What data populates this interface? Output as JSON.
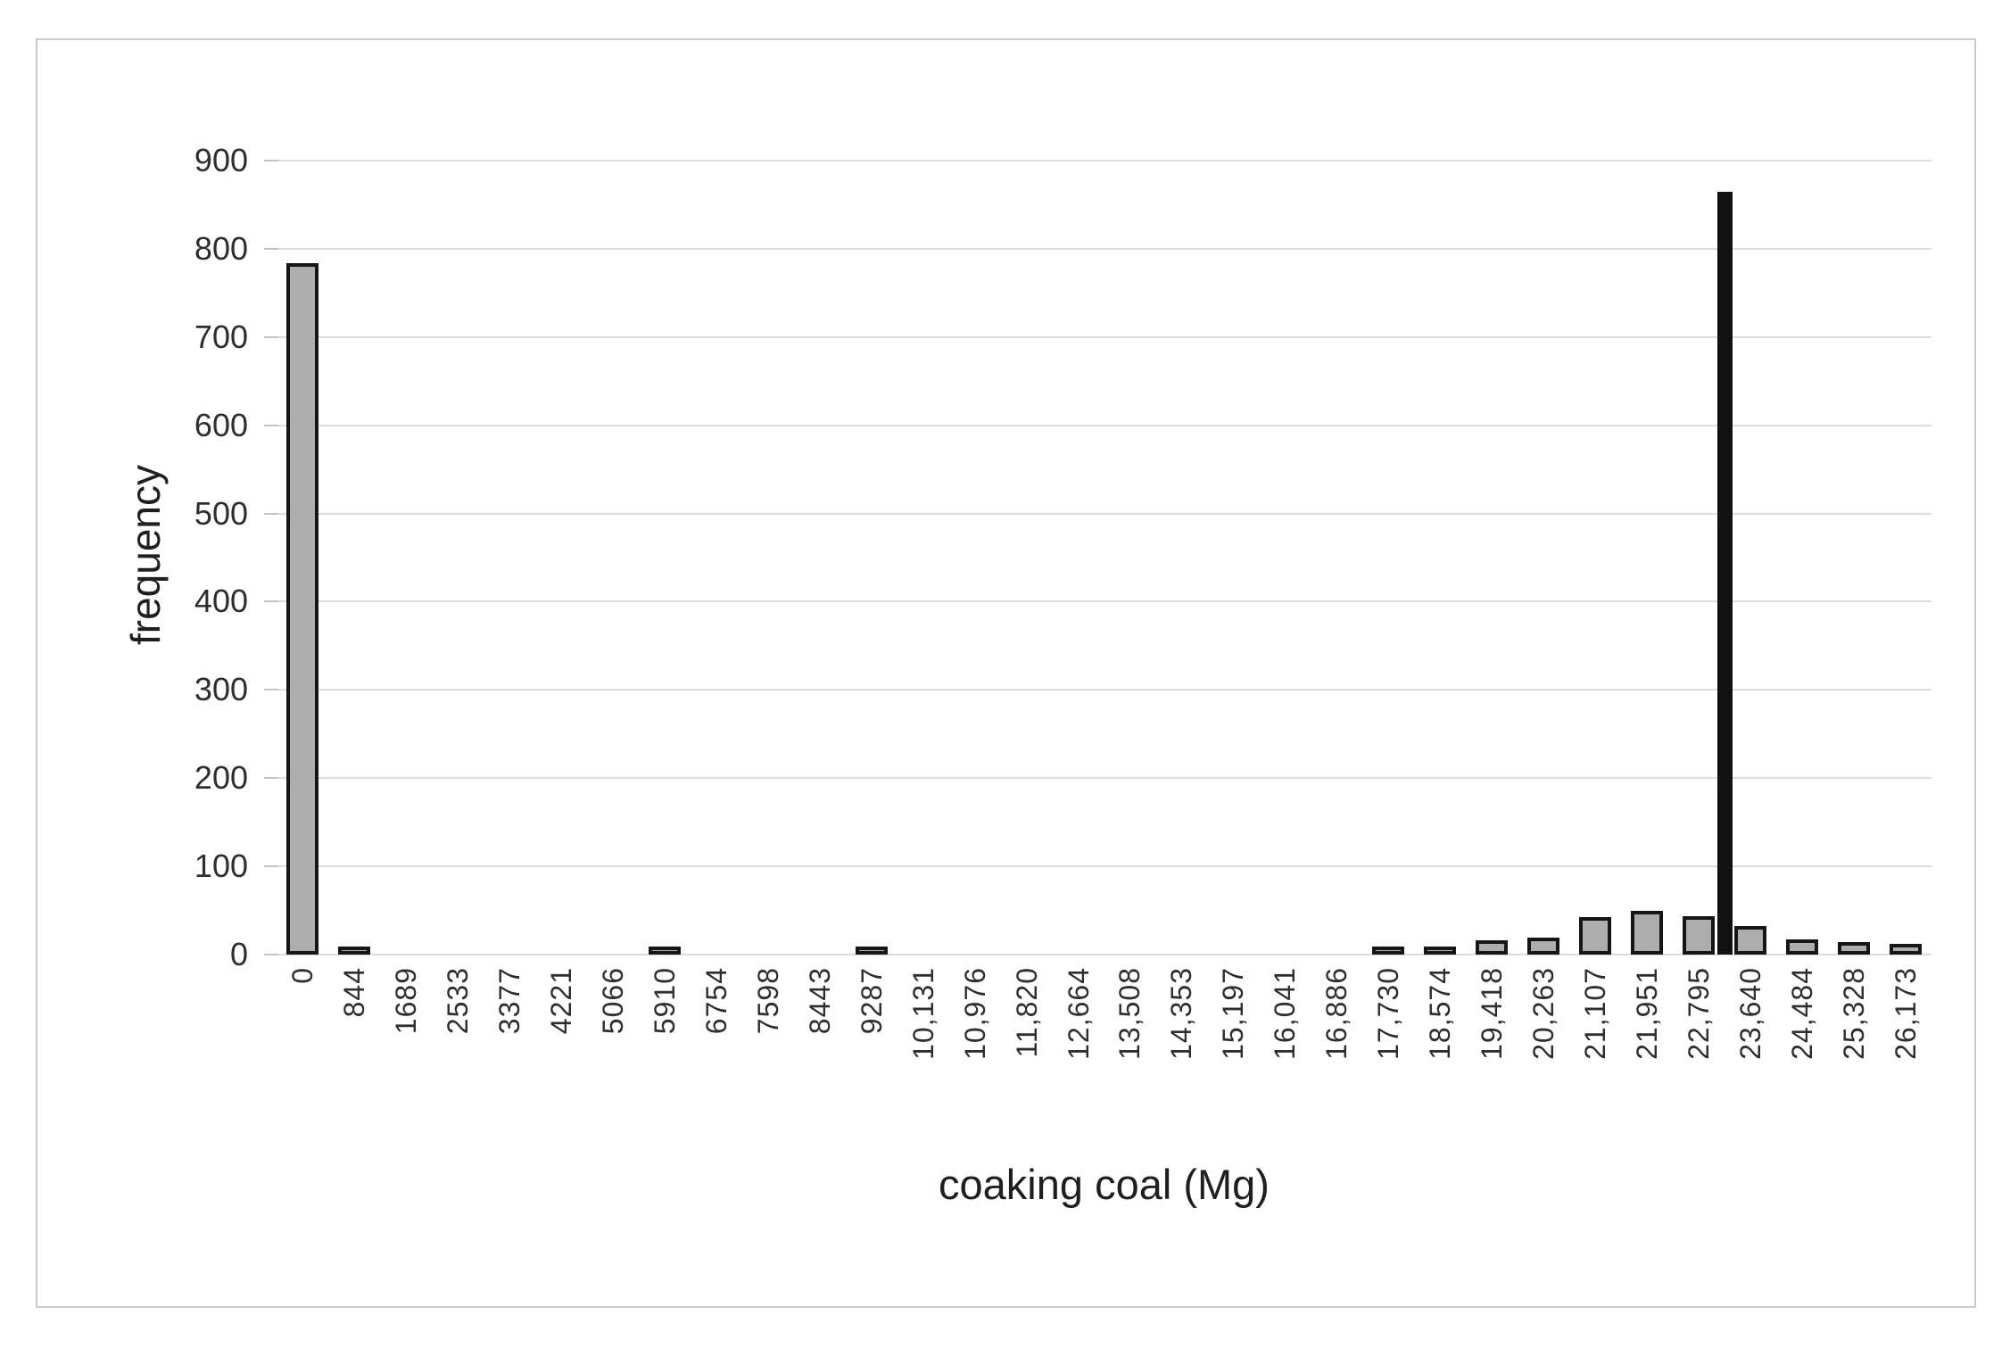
{
  "chart_data": {
    "type": "bar",
    "title": "",
    "xlabel": "coaking coal (Mg)",
    "ylabel": "frequency",
    "categories": [
      "0",
      "844",
      "1689",
      "2533",
      "3377",
      "4221",
      "5066",
      "5910",
      "6754",
      "7598",
      "8443",
      "9287",
      "10,131",
      "10,976",
      "11,820",
      "12,664",
      "13,508",
      "14,353",
      "15,197",
      "16,041",
      "16,886",
      "17,730",
      "18,574",
      "19,418",
      "20,263",
      "21,107",
      "21,951",
      "22,795",
      "23,640",
      "24,484",
      "25,328",
      "26,173"
    ],
    "values": [
      780,
      5,
      0,
      0,
      0,
      0,
      0,
      5,
      0,
      0,
      0,
      5,
      0,
      0,
      0,
      0,
      0,
      0,
      0,
      0,
      0,
      5,
      5,
      12,
      15,
      38,
      45,
      39,
      28,
      13,
      10,
      8
    ],
    "marker": {
      "value": 865,
      "between_categories": [
        "22,795",
        "23,640"
      ]
    },
    "ylim": [
      0,
      900
    ],
    "ytick_step": 100,
    "yticks": [
      0,
      100,
      200,
      300,
      400,
      500,
      600,
      700,
      800,
      900
    ],
    "grid": "horizontal",
    "legend": "none",
    "colors": {
      "bar_fill": "#adadad",
      "bar_border": "#161616",
      "marker": "#111111",
      "gridline": "#dcdcdc",
      "text": "#2e2e2e",
      "frame_border": "#c9cdc9"
    }
  }
}
